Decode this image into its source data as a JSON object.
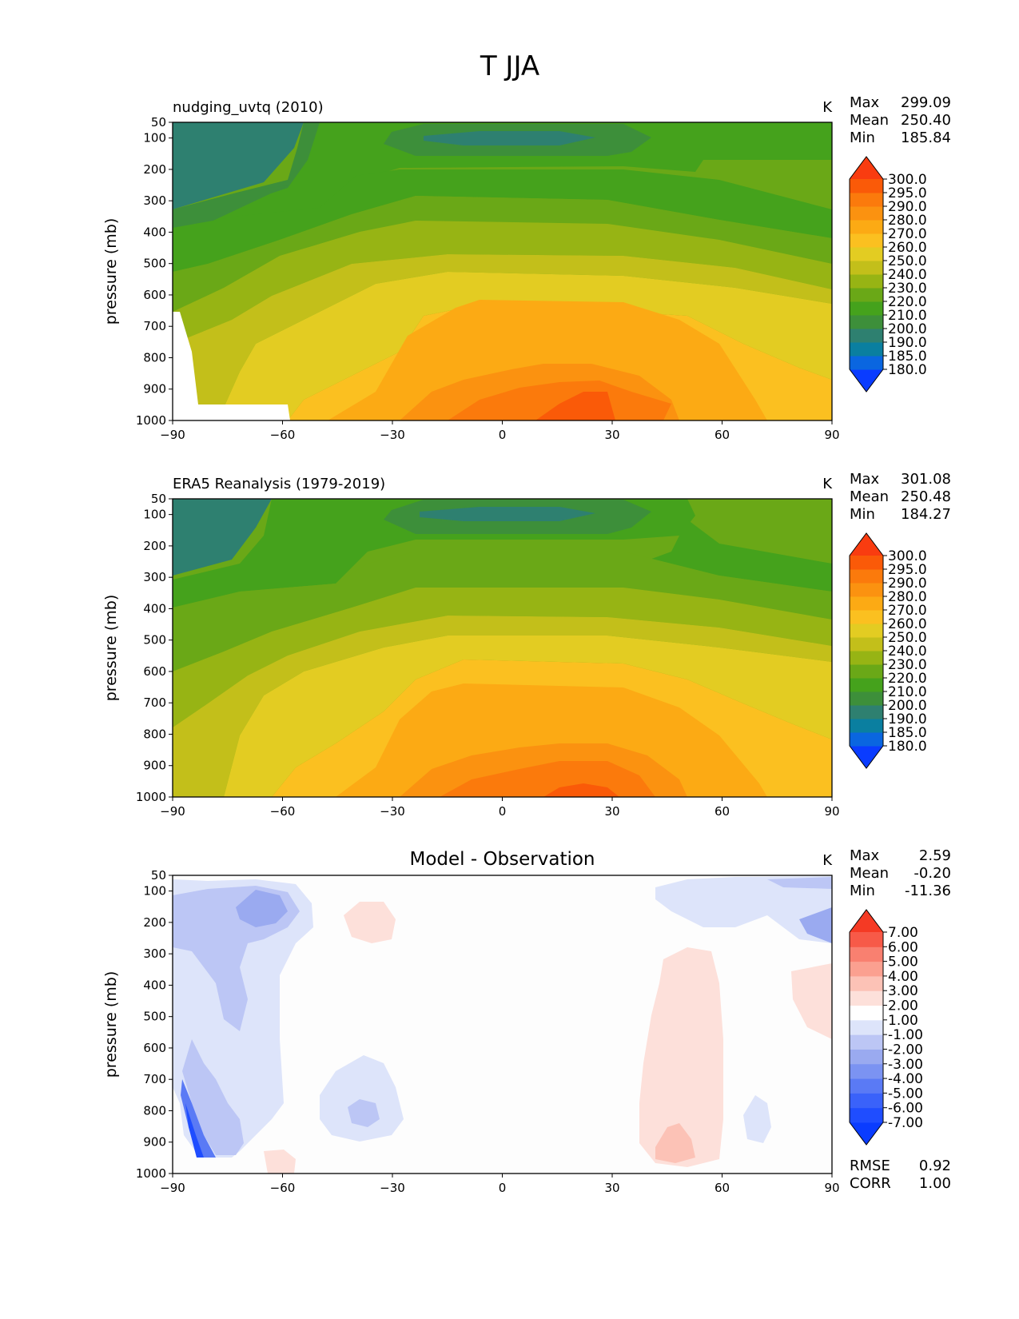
{
  "figure_title": "T JJA",
  "xticks": [
    -90,
    -60,
    -30,
    0,
    30,
    60,
    90
  ],
  "xtick_labels": [
    "−90",
    "−60",
    "−30",
    "0",
    "30",
    "60",
    "90"
  ],
  "yticks": [
    50,
    100,
    200,
    300,
    400,
    500,
    600,
    700,
    800,
    900,
    1000
  ],
  "ylabel": "pressure (mb)",
  "units": "K",
  "chart_data": [
    {
      "id": "model",
      "type": "contourf",
      "title": "nudging_uvtq (2010)",
      "title_align": "left",
      "xlabel": "",
      "ylabel": "pressure (mb)",
      "xlim": [
        -90,
        90
      ],
      "ylim": [
        1000,
        50
      ],
      "units": "K",
      "stats": [
        {
          "label": "Max",
          "value": "299.09"
        },
        {
          "label": "Mean",
          "value": "250.40"
        },
        {
          "label": "Min",
          "value": "185.84"
        }
      ],
      "colorbar": {
        "levels": [
          "180.0",
          "185.0",
          "190.0",
          "200.0",
          "210.0",
          "220.0",
          "230.0",
          "240.0",
          "250.0",
          "260.0",
          "270.0",
          "280.0",
          "290.0",
          "295.0",
          "300.0"
        ],
        "colors": [
          "#0a3cff",
          "#0a66e0",
          "#0a7fa0",
          "#2e8070",
          "#3d8f3a",
          "#45a21c",
          "#6aa817",
          "#97b414",
          "#c3bf1a",
          "#e3cc22",
          "#fbc020",
          "#fcaa14",
          "#fb9210",
          "#fb7a0c",
          "#fa5a08",
          "#f93c10"
        ],
        "extend": "both",
        "label_start": "180.0"
      },
      "field": {
        "lat": [
          -90,
          -60,
          -30,
          0,
          20,
          30,
          60,
          90
        ],
        "max": 299.09,
        "min": 185.84,
        "mean": 250.4
      }
    },
    {
      "id": "obs",
      "type": "contourf",
      "title": "ERA5 Reanalysis (1979-2019)",
      "title_align": "left",
      "xlabel": "",
      "ylabel": "pressure (mb)",
      "xlim": [
        -90,
        90
      ],
      "ylim": [
        1000,
        50
      ],
      "units": "K",
      "stats": [
        {
          "label": "Max",
          "value": "301.08"
        },
        {
          "label": "Mean",
          "value": "250.48"
        },
        {
          "label": "Min",
          "value": "184.27"
        }
      ],
      "colorbar": {
        "levels": [
          "180.0",
          "185.0",
          "190.0",
          "200.0",
          "210.0",
          "220.0",
          "230.0",
          "240.0",
          "250.0",
          "260.0",
          "270.0",
          "280.0",
          "290.0",
          "295.0",
          "300.0"
        ],
        "colors": [
          "#0a3cff",
          "#0a66e0",
          "#0a7fa0",
          "#2e8070",
          "#3d8f3a",
          "#45a21c",
          "#6aa817",
          "#97b414",
          "#c3bf1a",
          "#e3cc22",
          "#fbc020",
          "#fcaa14",
          "#fb9210",
          "#fb7a0c",
          "#fa5a08",
          "#f93c10"
        ],
        "extend": "both"
      },
      "field": {
        "max": 301.08,
        "min": 184.27,
        "mean": 250.48
      }
    },
    {
      "id": "diff",
      "type": "contourf",
      "title": "Model - Observation",
      "title_align": "center",
      "xlabel": "",
      "ylabel": "pressure (mb)",
      "xlim": [
        -90,
        90
      ],
      "ylim": [
        1000,
        50
      ],
      "units": "K",
      "stats": [
        {
          "label": "Max",
          "value": "2.59"
        },
        {
          "label": "Mean",
          "value": "-0.20"
        },
        {
          "label": "Min",
          "value": "-11.36"
        }
      ],
      "extra_stats": [
        {
          "label": "RMSE",
          "value": "0.92"
        },
        {
          "label": "CORR",
          "value": "1.00"
        }
      ],
      "colorbar": {
        "levels": [
          "-7.00",
          "-6.00",
          "-5.00",
          "-4.00",
          "-3.00",
          "-2.00",
          "-1.00",
          "1.00",
          "2.00",
          "3.00",
          "4.00",
          "5.00",
          "6.00",
          "7.00"
        ],
        "colors": [
          "#0a3cff",
          "#1f4dff",
          "#3a62fa",
          "#5a7af5",
          "#7b93f2",
          "#9aaaf0",
          "#bcc6f5",
          "#dde4fa",
          "#ffffff",
          "#fde0da",
          "#fcc2b6",
          "#fba090",
          "#f98070",
          "#f75a48",
          "#f53a24"
        ],
        "extend": "both"
      }
    }
  ]
}
